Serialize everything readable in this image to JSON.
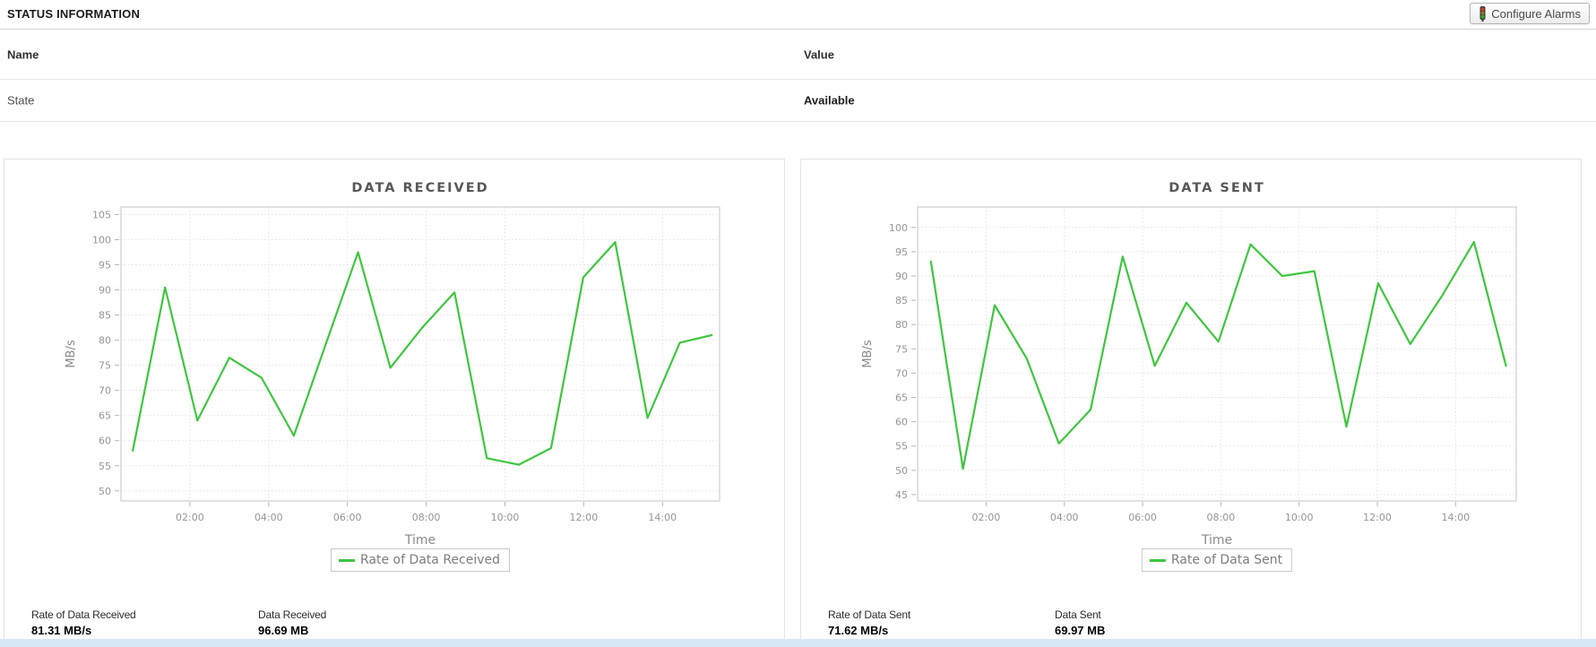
{
  "header": {
    "title": "STATUS INFORMATION",
    "configure_alarms_label": "Configure Alarms"
  },
  "status_table": {
    "columns": [
      "Name",
      "Value"
    ],
    "rows": [
      {
        "name": "State",
        "value": "Available"
      }
    ]
  },
  "panels": [
    {
      "stats": [
        {
          "label": "Rate of Data Received",
          "value": "81.31 MB/s"
        },
        {
          "label": "Data Received",
          "value": "96.69 MB"
        }
      ]
    },
    {
      "stats": [
        {
          "label": "Rate of Data Sent",
          "value": "71.62 MB/s"
        },
        {
          "label": "Data Sent",
          "value": "69.97 MB"
        }
      ]
    }
  ],
  "chart_data": [
    {
      "type": "line",
      "title": "DATA RECEIVED",
      "xlabel": "Time",
      "ylabel": "MB/s",
      "legend_label": "Rate of Data Received",
      "line_color": "#3ec63e",
      "grid": true,
      "x_range": [
        0.25,
        15.45
      ],
      "y_range": [
        48,
        106.5
      ],
      "y_ticks": [
        50,
        55,
        60,
        65,
        70,
        75,
        80,
        85,
        90,
        95,
        100,
        105
      ],
      "x_ticks": [
        {
          "v": 2,
          "label": "02:00"
        },
        {
          "v": 4,
          "label": "04:00"
        },
        {
          "v": 6,
          "label": "06:00"
        },
        {
          "v": 8,
          "label": "08:00"
        },
        {
          "v": 10,
          "label": "10:00"
        },
        {
          "v": 12,
          "label": "12:00"
        },
        {
          "v": 14,
          "label": "14:00"
        }
      ],
      "x_hours": [
        0.55,
        1.37,
        2.19,
        3.0,
        3.82,
        4.64,
        5.45,
        6.27,
        7.09,
        7.9,
        8.72,
        9.54,
        10.35,
        11.17,
        11.99,
        12.8,
        13.62,
        14.44,
        15.25
      ],
      "values": [
        58,
        90.5,
        64,
        76.5,
        72.5,
        61,
        79.2,
        97.5,
        74.5,
        82.5,
        89.5,
        56.5,
        55.2,
        58.5,
        92.5,
        99.5,
        64.5,
        79.5,
        81
      ]
    },
    {
      "type": "line",
      "title": "DATA SENT",
      "xlabel": "Time",
      "ylabel": "MB/s",
      "legend_label": "Rate of Data Sent",
      "line_color": "#3ec63e",
      "grid": true,
      "x_range": [
        0.25,
        15.55
      ],
      "y_range": [
        43.7,
        104.2
      ],
      "y_ticks": [
        45,
        50,
        55,
        60,
        65,
        70,
        75,
        80,
        85,
        90,
        95,
        100
      ],
      "x_ticks": [
        {
          "v": 2,
          "label": "02:00"
        },
        {
          "v": 4,
          "label": "04:00"
        },
        {
          "v": 6,
          "label": "06:00"
        },
        {
          "v": 8,
          "label": "08:00"
        },
        {
          "v": 10,
          "label": "10:00"
        },
        {
          "v": 12,
          "label": "12:00"
        },
        {
          "v": 14,
          "label": "14:00"
        }
      ],
      "x_hours": [
        0.59,
        1.41,
        2.22,
        3.04,
        3.86,
        4.67,
        5.49,
        6.31,
        7.12,
        7.94,
        8.76,
        9.57,
        10.39,
        11.21,
        12.02,
        12.84,
        13.66,
        14.47,
        15.29
      ],
      "values": [
        93,
        50.3,
        84,
        73,
        55.5,
        62.5,
        94,
        71.5,
        84.5,
        76.5,
        96.5,
        90,
        91,
        59,
        88.5,
        76,
        86,
        97,
        71.5
      ]
    }
  ]
}
